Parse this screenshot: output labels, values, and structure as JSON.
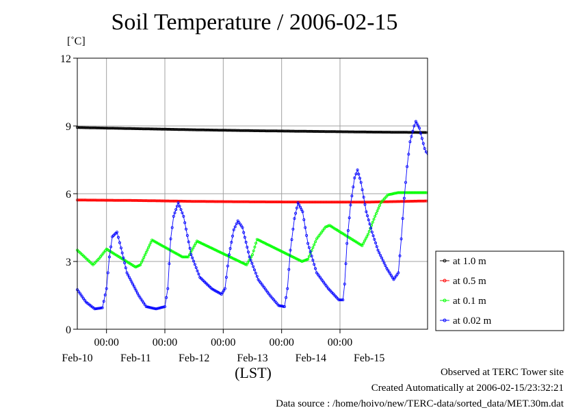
{
  "chart_data": {
    "type": "line",
    "title": "Soil Temperature / 2006-02-15",
    "ylabel": "[˚C]",
    "xlabel": "(LST)",
    "ylim": [
      0,
      12
    ],
    "yticks": [
      0,
      3,
      6,
      9,
      12
    ],
    "x_unit": "days from Feb-09 00:00 (LST)",
    "xlim": [
      0.5,
      6.5
    ],
    "x_tick_labels": [
      "00:00",
      "00:00",
      "00:00",
      "00:00",
      "00:00"
    ],
    "x_tick_positions": [
      1,
      2,
      3,
      4,
      5
    ],
    "date_labels": [
      "Feb-10",
      "Feb-11",
      "Feb-12",
      "Feb-13",
      "Feb-14",
      "Feb-15"
    ],
    "date_positions": [
      0.5,
      1.5,
      2.5,
      3.5,
      4.5,
      5.5
    ],
    "grid": true,
    "legend_position": "right",
    "series": [
      {
        "name": "at 1.0 m",
        "color": "#000000",
        "points": [
          [
            0.5,
            8.93
          ],
          [
            1.5,
            8.88
          ],
          [
            2.5,
            8.83
          ],
          [
            3.5,
            8.79
          ],
          [
            4.5,
            8.76
          ],
          [
            5.5,
            8.73
          ],
          [
            6.5,
            8.71
          ]
        ]
      },
      {
        "name": "at 0.5 m",
        "color": "#ff0000",
        "points": [
          [
            0.5,
            5.72
          ],
          [
            1.5,
            5.7
          ],
          [
            2.5,
            5.66
          ],
          [
            3.5,
            5.64
          ],
          [
            4.5,
            5.63
          ],
          [
            5.5,
            5.63
          ],
          [
            6.5,
            5.68
          ]
        ]
      },
      {
        "name": "at 0.1 m",
        "color": "#00ff00",
        "points": [
          [
            0.5,
            3.5
          ],
          [
            0.77,
            2.85
          ],
          [
            0.88,
            3.15
          ],
          [
            1.0,
            3.55
          ],
          [
            1.5,
            2.75
          ],
          [
            1.58,
            2.85
          ],
          [
            1.78,
            3.95
          ],
          [
            2.3,
            3.2
          ],
          [
            2.4,
            3.2
          ],
          [
            2.55,
            3.9
          ],
          [
            3.4,
            2.85
          ],
          [
            3.5,
            3.3
          ],
          [
            3.58,
            3.98
          ],
          [
            4.35,
            3.0
          ],
          [
            4.45,
            3.1
          ],
          [
            4.6,
            4.0
          ],
          [
            4.75,
            4.52
          ],
          [
            4.82,
            4.6
          ],
          [
            5.38,
            3.7
          ],
          [
            5.48,
            4.2
          ],
          [
            5.6,
            5.0
          ],
          [
            5.7,
            5.6
          ],
          [
            5.82,
            5.95
          ],
          [
            6.0,
            6.05
          ],
          [
            6.5,
            6.05
          ]
        ]
      },
      {
        "name": "at 0.02 m",
        "color": "#0000ff",
        "points": [
          [
            0.5,
            1.75
          ],
          [
            0.65,
            1.2
          ],
          [
            0.8,
            0.9
          ],
          [
            0.93,
            0.95
          ],
          [
            1.0,
            1.8
          ],
          [
            1.05,
            3.2
          ],
          [
            1.1,
            4.1
          ],
          [
            1.18,
            4.3
          ],
          [
            1.25,
            3.6
          ],
          [
            1.35,
            2.5
          ],
          [
            1.55,
            1.5
          ],
          [
            1.68,
            1.0
          ],
          [
            1.85,
            0.9
          ],
          [
            2.0,
            1.0
          ],
          [
            2.05,
            1.8
          ],
          [
            2.1,
            4.0
          ],
          [
            2.15,
            5.0
          ],
          [
            2.23,
            5.6
          ],
          [
            2.32,
            5.0
          ],
          [
            2.45,
            3.3
          ],
          [
            2.6,
            2.3
          ],
          [
            2.8,
            1.8
          ],
          [
            2.97,
            1.55
          ],
          [
            3.03,
            1.8
          ],
          [
            3.1,
            3.3
          ],
          [
            3.18,
            4.4
          ],
          [
            3.25,
            4.8
          ],
          [
            3.33,
            4.5
          ],
          [
            3.45,
            3.2
          ],
          [
            3.6,
            2.2
          ],
          [
            3.8,
            1.5
          ],
          [
            3.95,
            1.05
          ],
          [
            4.05,
            1.0
          ],
          [
            4.1,
            1.8
          ],
          [
            4.15,
            3.5
          ],
          [
            4.22,
            4.9
          ],
          [
            4.28,
            5.6
          ],
          [
            4.36,
            5.2
          ],
          [
            4.45,
            3.8
          ],
          [
            4.6,
            2.5
          ],
          [
            4.8,
            1.8
          ],
          [
            4.98,
            1.3
          ],
          [
            5.05,
            1.3
          ],
          [
            5.08,
            2.0
          ],
          [
            5.12,
            3.8
          ],
          [
            5.18,
            5.5
          ],
          [
            5.25,
            6.7
          ],
          [
            5.3,
            7.05
          ],
          [
            5.36,
            6.5
          ],
          [
            5.45,
            5.2
          ],
          [
            5.55,
            4.3
          ],
          [
            5.65,
            3.5
          ],
          [
            5.8,
            2.7
          ],
          [
            5.92,
            2.2
          ],
          [
            6.0,
            2.5
          ],
          [
            6.05,
            4.0
          ],
          [
            6.1,
            5.8
          ],
          [
            6.15,
            7.2
          ],
          [
            6.2,
            8.3
          ],
          [
            6.27,
            9.0
          ],
          [
            6.3,
            9.2
          ],
          [
            6.36,
            8.9
          ],
          [
            6.45,
            8.0
          ],
          [
            6.5,
            7.7
          ]
        ]
      }
    ]
  },
  "footer": {
    "line1": "Observed at TERC Tower site",
    "line2": "Created Automatically at 2006-02-15/23:32:21",
    "line3": "Data source : /home/hoivo/new/TERC-data/sorted_data/MET.30m.dat"
  }
}
